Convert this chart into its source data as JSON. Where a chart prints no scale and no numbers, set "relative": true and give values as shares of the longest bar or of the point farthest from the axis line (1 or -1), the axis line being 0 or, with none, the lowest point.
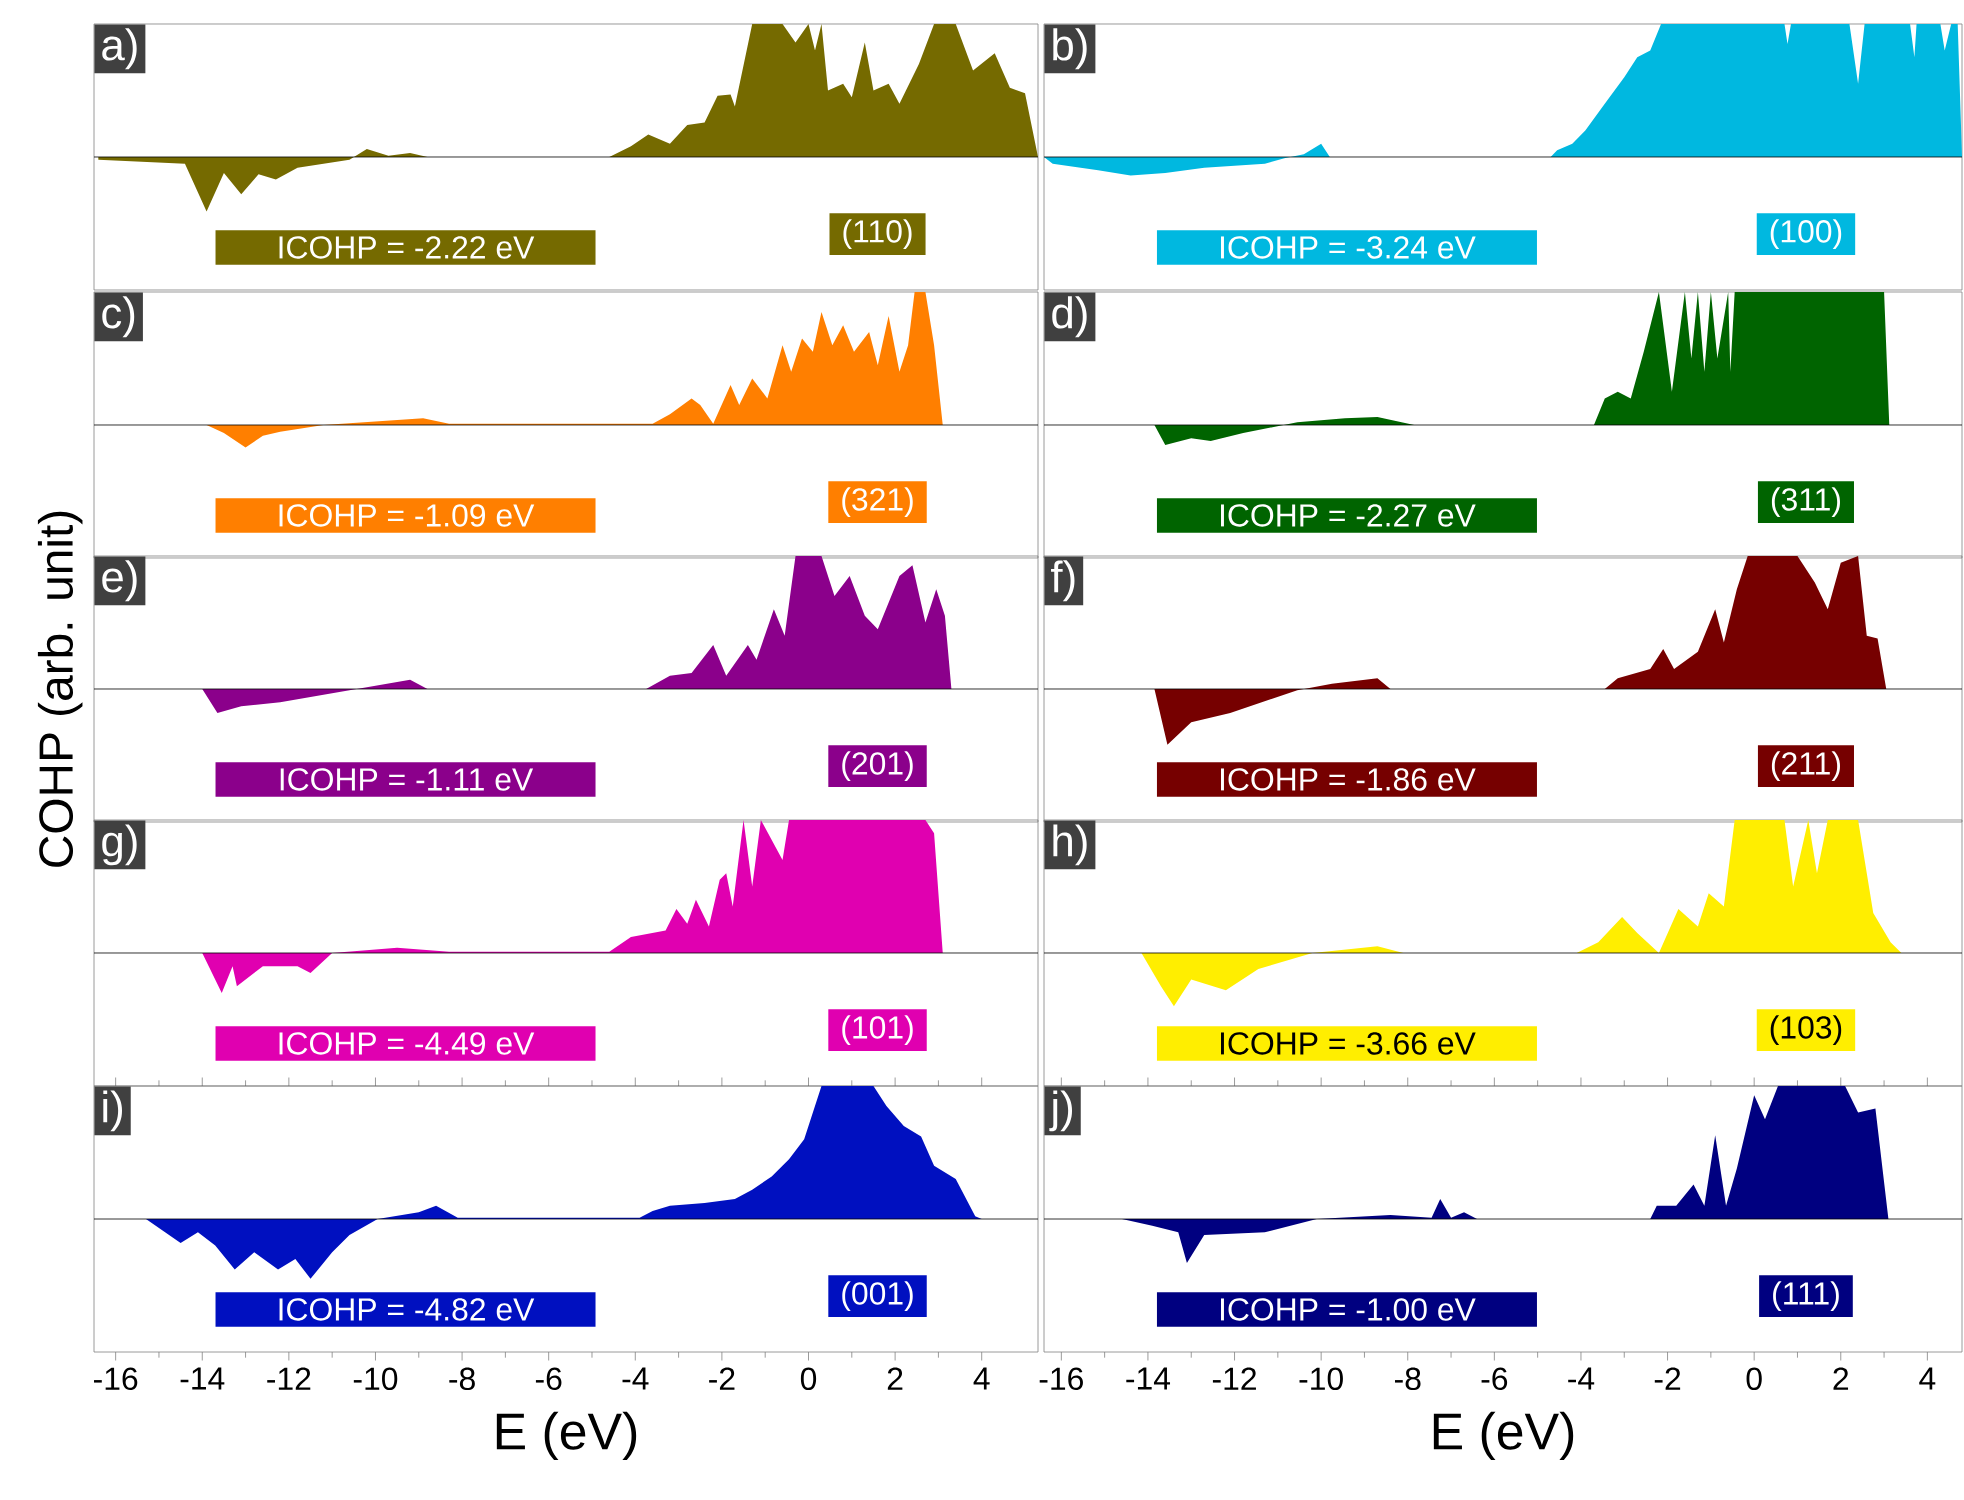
{
  "chart_data": [
    {
      "type": "area",
      "relative": true,
      "color": "#756a00",
      "xlim": [
        -16.5,
        5.3
      ],
      "tick_labels": false,
      "annotations": [
        "a)",
        "ICOHP = -2.22 eV",
        "(110)"
      ],
      "x": [
        -16.4,
        -14.4,
        -13.9,
        -13.5,
        -13.1,
        -12.7,
        -12.3,
        -11.8,
        -10.6,
        -10.2,
        -9.7,
        -9.2,
        -8.8,
        -4.6,
        -4.1,
        -3.7,
        -3.2,
        -2.8,
        -2.4,
        -2.1,
        -1.8,
        -1.7,
        -1.3,
        -0.6,
        -0.3,
        0,
        0.15,
        0.3,
        0.45,
        0.8,
        1.0,
        1.3,
        1.5,
        1.85,
        2.1,
        2.55,
        2.9,
        3.4,
        3.8,
        4.3,
        4.65,
        5.0,
        5.3
      ],
      "values": [
        -0.02,
        -0.05,
        -0.41,
        -0.12,
        -0.28,
        -0.13,
        -0.17,
        -0.08,
        -0.02,
        0.06,
        0.01,
        0.03,
        0,
        0,
        0.08,
        0.17,
        0.1,
        0.24,
        0.26,
        0.46,
        0.47,
        0.38,
        1,
        1,
        0.86,
        1,
        0.8,
        1,
        0.5,
        0.55,
        0.45,
        0.86,
        0.5,
        0.55,
        0.4,
        0.7,
        1,
        1,
        0.65,
        0.78,
        0.52,
        0.48,
        0
      ]
    },
    {
      "type": "area",
      "relative": true,
      "color": "#00b8e0",
      "xlim": [
        -16.4,
        4.8
      ],
      "tick_labels": false,
      "annotations": [
        "b)",
        "ICOHP = -3.24 eV",
        "(100)"
      ],
      "x": [
        -16.4,
        -16.2,
        -15.15,
        -14.4,
        -13.6,
        -12.7,
        -11.3,
        -10.85,
        -10.4,
        -10.0,
        -9.8,
        -4.7,
        -4.55,
        -4.2,
        -3.9,
        -3.45,
        -3.0,
        -2.7,
        -2.4,
        -2.15,
        0.7,
        0.77,
        0.85,
        2.2,
        2.4,
        2.55,
        3.6,
        3.7,
        3.75,
        4.3,
        4.4,
        4.55,
        4.7,
        4.8
      ],
      "values": [
        0,
        -0.05,
        -0.1,
        -0.14,
        -0.12,
        -0.08,
        -0.05,
        -0.01,
        0.02,
        0.1,
        0,
        0,
        0.05,
        0.1,
        0.2,
        0.4,
        0.6,
        0.75,
        0.8,
        1,
        1,
        0.85,
        1,
        1,
        0.55,
        1,
        1,
        0.75,
        1,
        1,
        0.8,
        1,
        1,
        0
      ]
    },
    {
      "type": "area",
      "relative": true,
      "color": "#ff7f00",
      "xlim": [
        -16.5,
        5.3
      ],
      "tick_labels": false,
      "annotations": [
        "c)",
        "ICOHP = -1.09 eV",
        "(321)"
      ],
      "x": [
        -13.9,
        -13.5,
        -13.0,
        -12.6,
        -12.2,
        -11.2,
        -8.9,
        -8.3,
        -3.6,
        -3.2,
        -2.7,
        -2.5,
        -2.2,
        -1.8,
        -1.6,
        -1.3,
        -0.95,
        -0.6,
        -0.4,
        -0.15,
        0.1,
        0.3,
        0.55,
        0.8,
        1.05,
        1.4,
        1.6,
        1.85,
        2.1,
        2.3,
        2.45,
        2.7,
        2.9,
        3.1
      ],
      "values": [
        0,
        -0.06,
        -0.17,
        -0.08,
        -0.05,
        0,
        0.05,
        0.01,
        0.01,
        0.08,
        0.2,
        0.15,
        0.01,
        0.3,
        0.15,
        0.35,
        0.2,
        0.6,
        0.4,
        0.65,
        0.55,
        0.85,
        0.6,
        0.75,
        0.55,
        0.7,
        0.45,
        0.82,
        0.4,
        0.6,
        1,
        1,
        0.6,
        0
      ]
    },
    {
      "type": "area",
      "relative": true,
      "color": "#006400",
      "xlim": [
        -16.4,
        4.8
      ],
      "tick_labels": false,
      "annotations": [
        "d)",
        "ICOHP = -2.27 eV",
        "(311)"
      ],
      "x": [
        -13.85,
        -13.6,
        -13.0,
        -12.55,
        -11.8,
        -10.55,
        -9.45,
        -8.7,
        -7.85,
        -3.7,
        -3.45,
        -3.15,
        -2.85,
        -2.55,
        -2.2,
        -1.9,
        -1.6,
        -1.45,
        -1.3,
        -1.15,
        -1.0,
        -0.85,
        -0.6,
        -0.55,
        -0.45,
        3.0,
        3.12
      ],
      "values": [
        0,
        -0.15,
        -0.1,
        -0.12,
        -0.06,
        0.02,
        0.05,
        0.06,
        0,
        0,
        0.2,
        0.25,
        0.2,
        0.55,
        1,
        0.25,
        1,
        0.5,
        1,
        0.4,
        1,
        0.5,
        1,
        0.4,
        1,
        1,
        0
      ]
    },
    {
      "type": "area",
      "relative": true,
      "color": "#8b008b",
      "xlim": [
        -16.5,
        5.3
      ],
      "tick_labels": false,
      "ylabel": "COHP (arb. unit)",
      "annotations": [
        "e)",
        "ICOHP = -1.11 eV",
        "(201)"
      ],
      "x": [
        -14.0,
        -13.65,
        -13.1,
        -12.2,
        -10.6,
        -9.2,
        -8.8,
        -3.75,
        -3.2,
        -2.7,
        -2.2,
        -1.9,
        -1.4,
        -1.2,
        -0.8,
        -0.55,
        -0.3,
        0.3,
        0.6,
        0.95,
        1.3,
        1.6,
        2.1,
        2.4,
        2.7,
        2.95,
        3.15,
        3.3
      ],
      "values": [
        0,
        -0.18,
        -0.13,
        -0.1,
        -0.01,
        0.07,
        0,
        0,
        0.1,
        0.12,
        0.33,
        0.1,
        0.33,
        0.22,
        0.6,
        0.4,
        1,
        1,
        0.7,
        0.85,
        0.55,
        0.45,
        0.85,
        0.93,
        0.5,
        0.75,
        0.55,
        0
      ]
    },
    {
      "type": "area",
      "relative": true,
      "color": "#760000",
      "xlim": [
        -16.4,
        4.8
      ],
      "tick_labels": false,
      "annotations": [
        "f)",
        "ICOHP = -1.86 eV",
        "(211)"
      ],
      "x": [
        -13.85,
        -13.55,
        -13.0,
        -12.1,
        -10.55,
        -9.75,
        -8.7,
        -8.4,
        -3.45,
        -3.15,
        -2.4,
        -2.1,
        -1.85,
        -1.3,
        -0.9,
        -0.7,
        -0.4,
        -0.15,
        1.0,
        1.4,
        1.7,
        2.0,
        2.4,
        2.6,
        2.85,
        3.05
      ],
      "values": [
        0,
        -0.42,
        -0.25,
        -0.18,
        -0.01,
        0.04,
        0.08,
        0,
        0,
        0.08,
        0.15,
        0.3,
        0.15,
        0.28,
        0.6,
        0.35,
        0.75,
        1,
        1,
        0.8,
        0.6,
        0.95,
        1,
        0.4,
        0.38,
        0
      ]
    },
    {
      "type": "area",
      "relative": true,
      "color": "#e000b0",
      "xlim": [
        -16.5,
        5.3
      ],
      "tick_labels": false,
      "annotations": [
        "g)",
        "ICOHP = -4.49 eV",
        "(101)"
      ],
      "x": [
        -14.0,
        -13.55,
        -13.3,
        -13.2,
        -12.6,
        -11.8,
        -11.5,
        -11.0,
        -9.5,
        -8.3,
        -4.6,
        -4.1,
        -3.3,
        -3.05,
        -2.8,
        -2.6,
        -2.3,
        -2.05,
        -1.9,
        -1.75,
        -1.5,
        -1.3,
        -1.1,
        -0.6,
        -0.45,
        2.7,
        2.9,
        3.1
      ],
      "values": [
        0,
        -0.3,
        -0.1,
        -0.25,
        -0.1,
        -0.1,
        -0.15,
        0,
        0.04,
        0.01,
        0.01,
        0.12,
        0.17,
        0.33,
        0.22,
        0.4,
        0.2,
        0.55,
        0.6,
        0.35,
        1,
        0.5,
        1,
        0.7,
        1,
        1,
        0.9,
        0
      ]
    },
    {
      "type": "area",
      "relative": true,
      "color": "#ffee00",
      "xlim": [
        -16.4,
        4.8
      ],
      "tick_labels": false,
      "annotations": [
        "h)",
        "ICOHP = -3.66 eV",
        "(103)"
      ],
      "x": [
        -14.15,
        -13.7,
        -13.4,
        -13.0,
        -12.2,
        -11.45,
        -10.2,
        -8.7,
        -8.1,
        -4.1,
        -3.6,
        -3.05,
        -2.7,
        -2.2,
        -1.75,
        -1.3,
        -1.05,
        -0.7,
        -0.45,
        0.7,
        0.9,
        1.25,
        1.45,
        1.7,
        2.4,
        2.75,
        3.15,
        3.4
      ],
      "values": [
        0,
        -0.25,
        -0.4,
        -0.2,
        -0.28,
        -0.12,
        0,
        0.05,
        0,
        0,
        0.08,
        0.27,
        0.15,
        0,
        0.33,
        0.2,
        0.45,
        0.35,
        1,
        1,
        0.5,
        1,
        0.6,
        1,
        1,
        0.3,
        0.08,
        0
      ]
    },
    {
      "type": "area",
      "relative": true,
      "color": "#0010c0",
      "xlim": [
        -16.5,
        5.3
      ],
      "xticks": [
        -16,
        -14,
        -12,
        -10,
        -8,
        -6,
        -4,
        -2,
        0,
        2,
        4
      ],
      "tick_labels": "x",
      "xlabel": "E (eV)",
      "annotations": [
        "i)",
        "ICOHP = -4.82 eV",
        "(001)"
      ],
      "x": [
        -16.3,
        -15.3,
        -14.5,
        -14.1,
        -13.7,
        -13.25,
        -12.8,
        -12.25,
        -11.85,
        -11.5,
        -11.0,
        -10.6,
        -9.95,
        -9.0,
        -8.6,
        -8.1,
        -3.9,
        -3.6,
        -3.2,
        -2.4,
        -1.7,
        -1.3,
        -0.85,
        -0.45,
        -0.1,
        0.3,
        1.5,
        1.8,
        2.2,
        2.6,
        2.9,
        3.4,
        3.85,
        4.0
      ],
      "values": [
        0,
        0,
        -0.18,
        -0.1,
        -0.2,
        -0.38,
        -0.25,
        -0.38,
        -0.3,
        -0.45,
        -0.25,
        -0.12,
        0,
        0.05,
        0.1,
        0.01,
        0.01,
        0.06,
        0.1,
        0.12,
        0.15,
        0.22,
        0.32,
        0.45,
        0.6,
        1,
        1,
        0.85,
        0.7,
        0.62,
        0.4,
        0.3,
        0.02,
        0
      ]
    },
    {
      "type": "area",
      "relative": true,
      "color": "#000080",
      "xlim": [
        -16.4,
        4.8
      ],
      "xticks": [
        -16,
        -14,
        -12,
        -10,
        -8,
        -6,
        -4,
        -2,
        0,
        2,
        4
      ],
      "tick_labels": "x",
      "xlabel": "E (eV)",
      "annotations": [
        "j)",
        "ICOHP = -1.00 eV",
        "(111)"
      ],
      "x": [
        -14.6,
        -13.9,
        -13.3,
        -13.1,
        -12.7,
        -11.3,
        -10.1,
        -8.4,
        -7.45,
        -7.25,
        -7.0,
        -6.7,
        -6.4,
        -2.4,
        -2.25,
        -1.8,
        -1.4,
        -1.15,
        -0.9,
        -0.65,
        -0.4,
        0,
        0.25,
        0.55,
        2.1,
        2.4,
        2.8,
        3.1
      ],
      "values": [
        0,
        -0.05,
        -0.1,
        -0.33,
        -0.12,
        -0.1,
        0,
        0.03,
        0.01,
        0.15,
        0.01,
        0.05,
        0,
        0,
        0.1,
        0.1,
        0.26,
        0.1,
        0.63,
        0.1,
        0.38,
        0.93,
        0.75,
        1,
        1,
        0.8,
        0.83,
        0
      ]
    }
  ]
}
